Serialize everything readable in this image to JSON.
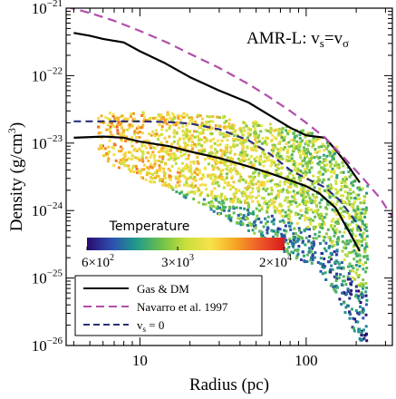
{
  "chart_data": {
    "type": "line",
    "title": "",
    "annotation": "AMR-L: vs=vσ",
    "annotation_parts": {
      "main": "AMR-L: v",
      "sub1": "s",
      "eq": "=v",
      "sub2": "σ"
    },
    "xlabel": "Radius (pc)",
    "ylabel": "Density (g/cm",
    "ylabel_sup": "3",
    "ylabel_close": ")",
    "xscale": "log",
    "yscale": "log",
    "xlim": [
      3.6,
      330
    ],
    "ylim": [
      1e-26,
      1e-21
    ],
    "x_ticks": [
      {
        "value": 10,
        "label": "10"
      },
      {
        "value": 100,
        "label": "100"
      }
    ],
    "y_ticks": [
      {
        "value": 1e-21,
        "base": "10",
        "exp": "−21"
      },
      {
        "value": 1e-22,
        "base": "10",
        "exp": "−22"
      },
      {
        "value": 1e-23,
        "base": "10",
        "exp": "−23"
      },
      {
        "value": 1e-24,
        "base": "10",
        "exp": "−24"
      },
      {
        "value": 1e-25,
        "base": "10",
        "exp": "−25"
      },
      {
        "value": 1e-26,
        "base": "10",
        "exp": "−26"
      }
    ],
    "colorbar": {
      "title": "Temperature",
      "range": [
        600,
        20000
      ],
      "scale": "log",
      "colors": [
        "#2a0a6e",
        "#2d4fb0",
        "#1f9a8a",
        "#6cc04a",
        "#c8df3c",
        "#f7e34a",
        "#f6a623",
        "#ee5a2a",
        "#d7191c"
      ],
      "ticks": [
        {
          "value": 600,
          "label": "6×10",
          "exp": "2"
        },
        {
          "value": 3000,
          "label": "3×10",
          "exp": "3"
        },
        {
          "value": 20000,
          "label": "2×10",
          "exp": "4"
        }
      ]
    },
    "series": [
      {
        "name": "Gas & DM",
        "color": "#000000",
        "dash": "solid",
        "points": [
          [
            4,
            4.3e-22
          ],
          [
            5,
            3.9e-22
          ],
          [
            6,
            3.5e-22
          ],
          [
            8,
            3.1e-22
          ],
          [
            10,
            2.3e-22
          ],
          [
            14,
            1.55e-22
          ],
          [
            20,
            9.5e-23
          ],
          [
            30,
            6e-23
          ],
          [
            45,
            4e-23
          ],
          [
            60,
            2.6e-23
          ],
          [
            80,
            1.7e-23
          ],
          [
            100,
            1.3e-23
          ],
          [
            130,
            1.2e-23
          ],
          [
            150,
            8e-24
          ],
          [
            180,
            4.5e-24
          ],
          [
            210,
            2.6e-24
          ]
        ]
      },
      {
        "points": [
          [
            4,
            1.2e-23
          ],
          [
            6,
            1.25e-23
          ],
          [
            8,
            1.2e-23
          ],
          [
            10,
            1.05e-23
          ],
          [
            15,
            9e-24
          ],
          [
            20,
            7.5e-24
          ],
          [
            30,
            6e-24
          ],
          [
            45,
            4.5e-24
          ],
          [
            60,
            3.6e-24
          ],
          [
            80,
            2.8e-24
          ],
          [
            100,
            2.3e-24
          ],
          [
            120,
            1.8e-24
          ],
          [
            150,
            1.1e-24
          ],
          [
            180,
            5e-25
          ],
          [
            210,
            2.5e-25
          ]
        ]
      },
      {
        "name": "Navarro et al. 1997",
        "color": "#b14fa9",
        "dash": "long",
        "points": [
          [
            3.6,
            1.05e-21
          ],
          [
            5,
            8.5e-22
          ],
          [
            7,
            6.5e-22
          ],
          [
            10,
            4.6e-22
          ],
          [
            15,
            3e-22
          ],
          [
            20,
            2.1e-22
          ],
          [
            30,
            1.3e-22
          ],
          [
            45,
            7.5e-23
          ],
          [
            60,
            4.8e-23
          ],
          [
            80,
            3e-23
          ],
          [
            100,
            2e-23
          ],
          [
            130,
            1.2e-23
          ],
          [
            170,
            6e-24
          ],
          [
            220,
            3e-24
          ],
          [
            280,
            1.5e-24
          ],
          [
            330,
            8e-25
          ]
        ]
      },
      {
        "name": "vs = 0",
        "legend_main": "v",
        "legend_sub": "s",
        "legend_tail": " = 0",
        "color": "#2b2f7a",
        "dash": "medium",
        "points": [
          [
            4,
            2.1e-23
          ],
          [
            6,
            2.1e-23
          ],
          [
            10,
            2.1e-23
          ],
          [
            15,
            2.05e-23
          ],
          [
            20,
            1.95e-23
          ],
          [
            30,
            1.6e-23
          ],
          [
            45,
            1.1e-23
          ],
          [
            60,
            7e-24
          ],
          [
            80,
            4e-24
          ],
          [
            100,
            3e-24
          ],
          [
            130,
            2.2e-24
          ],
          [
            160,
            1.4e-24
          ],
          [
            190,
            8e-25
          ],
          [
            215,
            5e-25
          ]
        ]
      }
    ],
    "legend": {
      "position": "lower-left"
    }
  }
}
